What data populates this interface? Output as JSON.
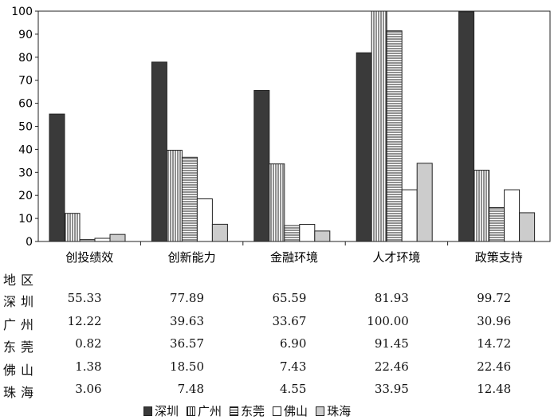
{
  "chart_data": {
    "type": "bar",
    "categories": [
      "创投绩效",
      "创新能力",
      "金融环境",
      "人才环境",
      "政策支持"
    ],
    "series": [
      {
        "name": "深圳",
        "values": [
          55.33,
          77.89,
          65.59,
          81.93,
          99.72
        ],
        "pattern": "dark"
      },
      {
        "name": "广州",
        "values": [
          12.22,
          39.63,
          33.67,
          100.0,
          30.96
        ],
        "pattern": "vlines"
      },
      {
        "name": "东莞",
        "values": [
          0.82,
          36.57,
          6.9,
          91.45,
          14.72
        ],
        "pattern": "hlines"
      },
      {
        "name": "佛山",
        "values": [
          1.38,
          18.5,
          7.43,
          22.46,
          22.46
        ],
        "pattern": "white"
      },
      {
        "name": "珠海",
        "values": [
          3.06,
          7.48,
          4.55,
          33.95,
          12.48
        ],
        "pattern": "gray"
      }
    ],
    "ylim": [
      0,
      100
    ],
    "yticks": [
      "0",
      "10",
      "20",
      "30",
      "40",
      "50",
      "60",
      "70",
      "80",
      "90",
      "100"
    ],
    "title": "",
    "xlabel": "",
    "ylabel": "",
    "legend_position": "bottom"
  },
  "table": {
    "header": "地区",
    "rows": [
      {
        "region": "深圳",
        "cells": [
          "55.33",
          "77.89",
          "65.59",
          "81.93",
          "99.72"
        ]
      },
      {
        "region": "广州",
        "cells": [
          "12.22",
          "39.63",
          "33.67",
          "100.00",
          "30.96"
        ]
      },
      {
        "region": "东莞",
        "cells": [
          "0.82",
          "36.57",
          "6.90",
          "91.45",
          "14.72"
        ]
      },
      {
        "region": "佛山",
        "cells": [
          "1.38",
          "18.50",
          "7.43",
          "22.46",
          "22.46"
        ]
      },
      {
        "region": "珠海",
        "cells": [
          "3.06",
          "7.48",
          "4.55",
          "33.95",
          "12.48"
        ]
      }
    ]
  },
  "colors": {
    "dark": "#3a3a3a",
    "gray": "#cccccc",
    "white": "#ffffff",
    "stroke": "#222222"
  }
}
